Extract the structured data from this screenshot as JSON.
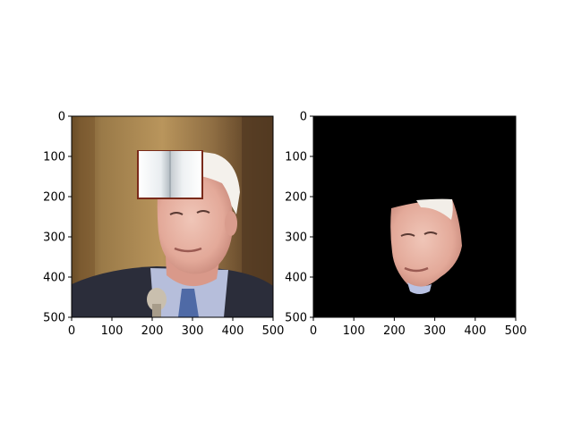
{
  "figure": {
    "panels": [
      {
        "name": "left-panel",
        "content": "photo with book occluding forehead",
        "x_ticks": [
          "0",
          "100",
          "200",
          "300",
          "400",
          "500"
        ],
        "y_ticks": [
          "0",
          "100",
          "200",
          "300",
          "400",
          "500"
        ],
        "xlim": [
          0,
          500
        ],
        "ylim": [
          500,
          0
        ]
      },
      {
        "name": "right-panel",
        "content": "segmented face mask on black background",
        "x_ticks": [
          "0",
          "100",
          "200",
          "300",
          "400",
          "500"
        ],
        "y_ticks": [
          "0",
          "100",
          "200",
          "300",
          "400",
          "500"
        ],
        "xlim": [
          0,
          500
        ],
        "ylim": [
          500,
          0
        ]
      }
    ],
    "colors": {
      "background": "#ffffff",
      "mask_background": "#000000",
      "skin": "#e8b3a3",
      "suit": "#2b2d3a",
      "shirt": "#b6bedb",
      "tie": "#4f6aa6",
      "wall": "#8a6a3e",
      "hair": "#f4f1ec",
      "book": "#f2f4f6"
    }
  }
}
